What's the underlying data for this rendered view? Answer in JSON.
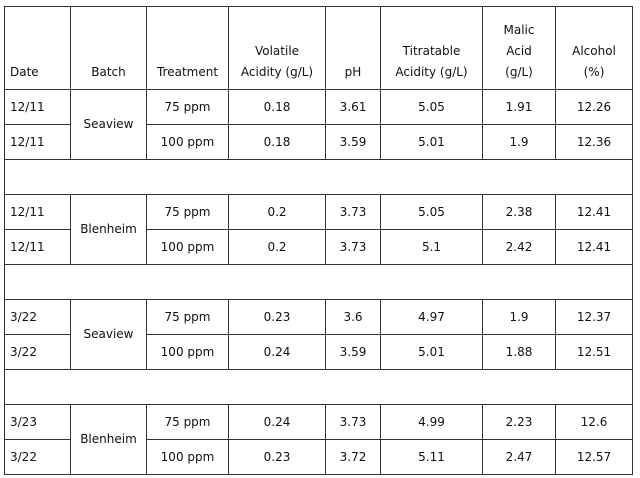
{
  "table": {
    "columns": [
      "Date",
      "Batch",
      "Treatment",
      "Volatile\nAcidity (g/L)",
      "pH",
      "Titratable\nAcidity (g/L)",
      "Malic\nAcid\n(g/L)",
      "Alcohol\n(%)"
    ],
    "groups": [
      {
        "batch": "Seaview",
        "rows": [
          [
            "12/11",
            "75 ppm",
            "0.18",
            "3.61",
            "5.05",
            "1.91",
            "12.26"
          ],
          [
            "12/11",
            "100 ppm",
            "0.18",
            "3.59",
            "5.01",
            "1.9",
            "12.36"
          ]
        ]
      },
      {
        "batch": "Blenheim",
        "rows": [
          [
            "12/11",
            "75 ppm",
            "0.2",
            "3.73",
            "5.05",
            "2.38",
            "12.41"
          ],
          [
            "12/11",
            "100 ppm",
            "0.2",
            "3.73",
            "5.1",
            "2.42",
            "12.41"
          ]
        ]
      },
      {
        "batch": "Seaview",
        "rows": [
          [
            "3/22",
            "75 ppm",
            "0.23",
            "3.6",
            "4.97",
            "1.9",
            "12.37"
          ],
          [
            "3/22",
            "100 ppm",
            "0.24",
            "3.59",
            "5.01",
            "1.88",
            "12.51"
          ]
        ]
      },
      {
        "batch": "Blenheim",
        "rows": [
          [
            "3/23",
            "75 ppm",
            "0.24",
            "3.73",
            "4.99",
            "2.23",
            "12.6"
          ],
          [
            "3/22",
            "100 ppm",
            "0.23",
            "3.72",
            "5.11",
            "2.47",
            "12.57"
          ]
        ]
      }
    ]
  }
}
